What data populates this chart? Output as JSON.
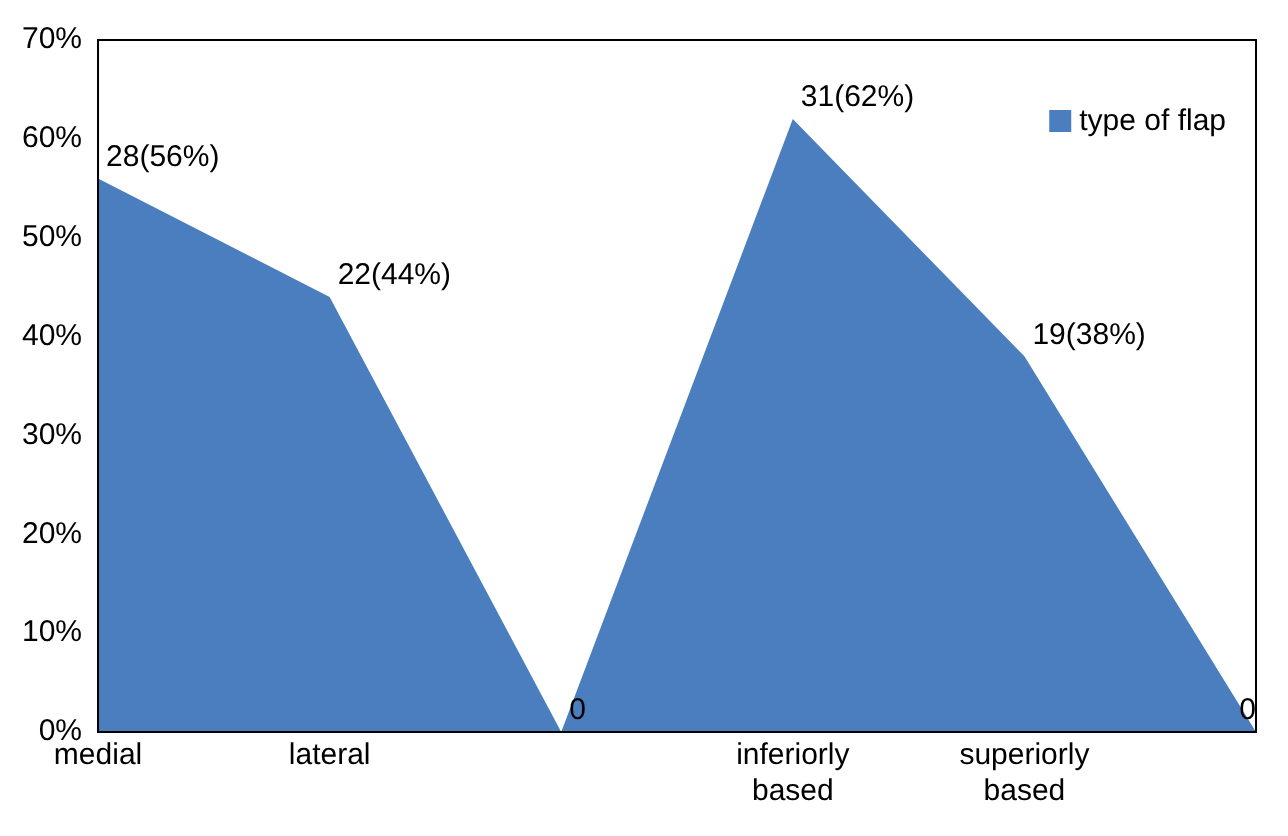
{
  "chart_data": {
    "type": "area",
    "categories": [
      "medial",
      "lateral",
      null,
      "inferiorly based",
      "superiorly based",
      null
    ],
    "series": [
      {
        "name": "type of flap",
        "color": "#4a7ebf",
        "values": [
          56,
          44,
          0,
          62,
          38,
          0
        ],
        "value_labels": [
          "28(56%)",
          "22(44%)",
          "0",
          "31(62%)",
          "19(38%)",
          "0"
        ]
      }
    ],
    "ylim": [
      0,
      70
    ],
    "yticks": [
      {
        "value": 0,
        "label": "0%"
      },
      {
        "value": 10,
        "label": "10%"
      },
      {
        "value": 20,
        "label": "20%"
      },
      {
        "value": 30,
        "label": "30%"
      },
      {
        "value": 40,
        "label": "40%"
      },
      {
        "value": 50,
        "label": "50%"
      },
      {
        "value": 60,
        "label": "60%"
      },
      {
        "value": 70,
        "label": "70%"
      }
    ],
    "grid": false,
    "legend": "top right",
    "marker": "none"
  }
}
